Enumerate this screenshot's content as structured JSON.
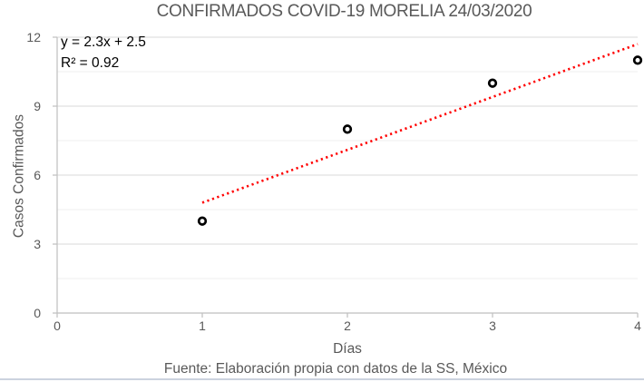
{
  "title": "CONFIRMADOS COVID-19 MORELIA 24/03/2020",
  "annotation": {
    "equation": "y = 2.3x + 2.5",
    "r_squared": "R² = 0.92"
  },
  "axes": {
    "y_label": "Casos Confirmados",
    "x_label": "Días"
  },
  "footer": "Fuente: Elaboración propia con datos de la SS, México",
  "colors": {
    "text": "#595959",
    "annotation_text": "#000000",
    "axis_line": "#bfbfbf",
    "major_grid": "#d9d9d9",
    "minor_grid": "#efefef",
    "trendline": "#ff0000",
    "marker_stroke": "#000000",
    "marker_fill": "#ffffff",
    "bottom_rule": "#ccd3df"
  },
  "chart_data": {
    "type": "scatter",
    "title": "CONFIRMADOS COVID-19 MORELIA 24/03/2020",
    "xlabel": "Días",
    "ylabel": "Casos Confirmados",
    "x": [
      1,
      2,
      3,
      4
    ],
    "y": [
      4,
      8,
      10,
      11
    ],
    "xlim": [
      0,
      4
    ],
    "ylim": [
      0,
      12
    ],
    "x_ticks": [
      0,
      1,
      2,
      3,
      4
    ],
    "y_ticks": [
      0,
      3,
      6,
      9,
      12
    ],
    "minor_y_ticks": [
      1.5,
      4.5,
      7.5,
      10.5
    ],
    "grid": "horizontal-only",
    "legend": "none",
    "marker": "open-circle-black",
    "trendline": {
      "type": "linear",
      "slope": 2.3,
      "intercept": 2.5,
      "r2": 0.92,
      "x_start": 1,
      "x_end": 4,
      "style": "dotted",
      "color": "#ff0000"
    },
    "source_note": "Fuente: Elaboración propia con datos de la SS, México"
  }
}
